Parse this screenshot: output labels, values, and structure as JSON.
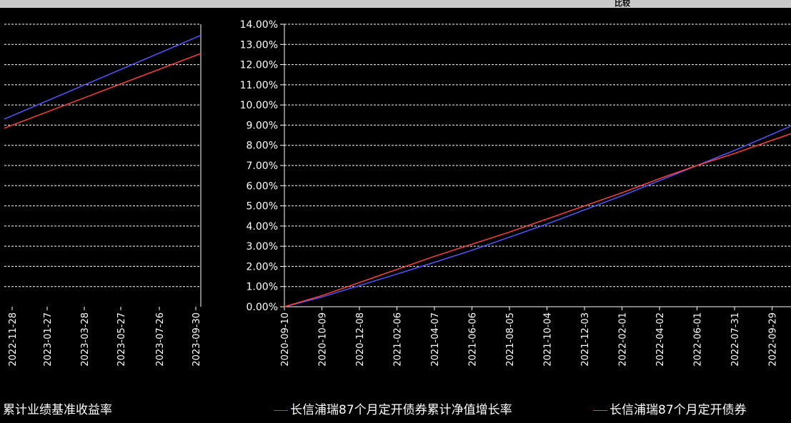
{
  "header": {
    "label": "比较"
  },
  "colors": {
    "nav": "#5555ff",
    "benchmark": "#ff4040",
    "grid": "#ffffff",
    "axis": "#ffffff"
  },
  "legend": {
    "benchmark_left": "累计业绩基准收益率",
    "nav": "长信浦瑞87个月定开债券累计净值增长率",
    "benchmark": "长信浦瑞87个月定开债券"
  },
  "chart_data": [
    {
      "type": "line",
      "panel": "left",
      "x": [
        "2022-11-28",
        "2023-01-27",
        "2023-03-28",
        "2023-05-27",
        "2023-07-26",
        "2023-09-30"
      ],
      "series": [
        {
          "name": "长信浦瑞87个月定开债券累计净值增长率",
          "color": "#5555ff",
          "start": 9.3,
          "end": 13.45
        },
        {
          "name": "长信浦瑞87个月定开债券",
          "color": "#ff4040",
          "start": 8.85,
          "end": 12.55
        }
      ],
      "ylim": [
        0,
        14
      ],
      "grid": true
    },
    {
      "type": "line",
      "panel": "right",
      "yticks": [
        "0.00%",
        "1.00%",
        "2.00%",
        "3.00%",
        "4.00%",
        "5.00%",
        "6.00%",
        "7.00%",
        "8.00%",
        "9.00%",
        "10.00%",
        "11.00%",
        "12.00%",
        "13.00%",
        "14.00%"
      ],
      "x": [
        "2020-09-10",
        "2020-10-09",
        "2020-12-08",
        "2021-02-06",
        "2021-04-07",
        "2021-06-06",
        "2021-08-05",
        "2021-10-04",
        "2021-12-03",
        "2022-02-01",
        "2022-04-02",
        "2022-06-01",
        "2022-07-31",
        "2022-09-29"
      ],
      "series": [
        {
          "name": "长信浦瑞87个月定开债券累计净值增长率",
          "color": "#5555ff",
          "values": [
            0,
            0.48,
            1.05,
            1.62,
            2.2,
            2.8,
            3.45,
            4.1,
            4.8,
            5.5,
            6.25,
            7.0,
            7.75,
            8.55
          ]
        },
        {
          "name": "长信浦瑞87个月定开债券",
          "color": "#ff4040",
          "values": [
            0,
            0.55,
            1.2,
            1.85,
            2.5,
            3.1,
            3.7,
            4.35,
            5.0,
            5.65,
            6.35,
            7.0,
            7.6,
            8.25
          ]
        }
      ],
      "ylim": [
        0,
        14
      ],
      "grid": true
    }
  ]
}
